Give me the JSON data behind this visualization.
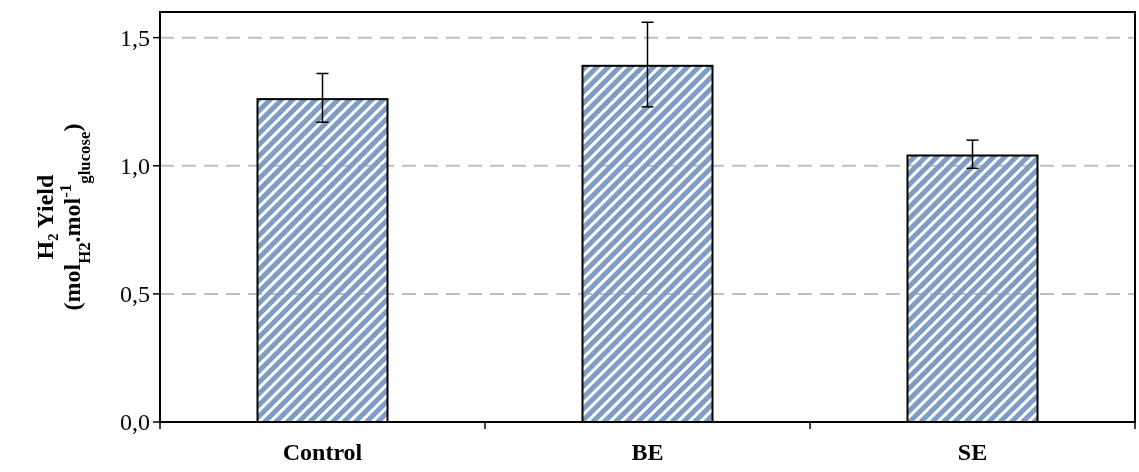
{
  "chart_data": {
    "type": "bar",
    "ylabel": "H₂ Yield\n(mol$_{H2}$.mol$^{-1}$$_{glucose}$)",
    "categories": [
      "Control",
      "BE",
      "SE"
    ],
    "values": [
      1.26,
      1.39,
      1.04
    ],
    "errors": [
      [
        1.17,
        1.36
      ],
      [
        1.23,
        1.56
      ],
      [
        0.99,
        1.1
      ]
    ],
    "color": "#7f9cc4",
    "ylim": [
      0,
      1.6
    ],
    "yticks": [
      {
        "value": 0,
        "label": "0,0"
      },
      {
        "value": 0.5,
        "label": "0,5"
      },
      {
        "value": 1,
        "label": "1,0"
      },
      {
        "value": 1.5,
        "label": "1,5"
      }
    ],
    "grid": "y"
  }
}
